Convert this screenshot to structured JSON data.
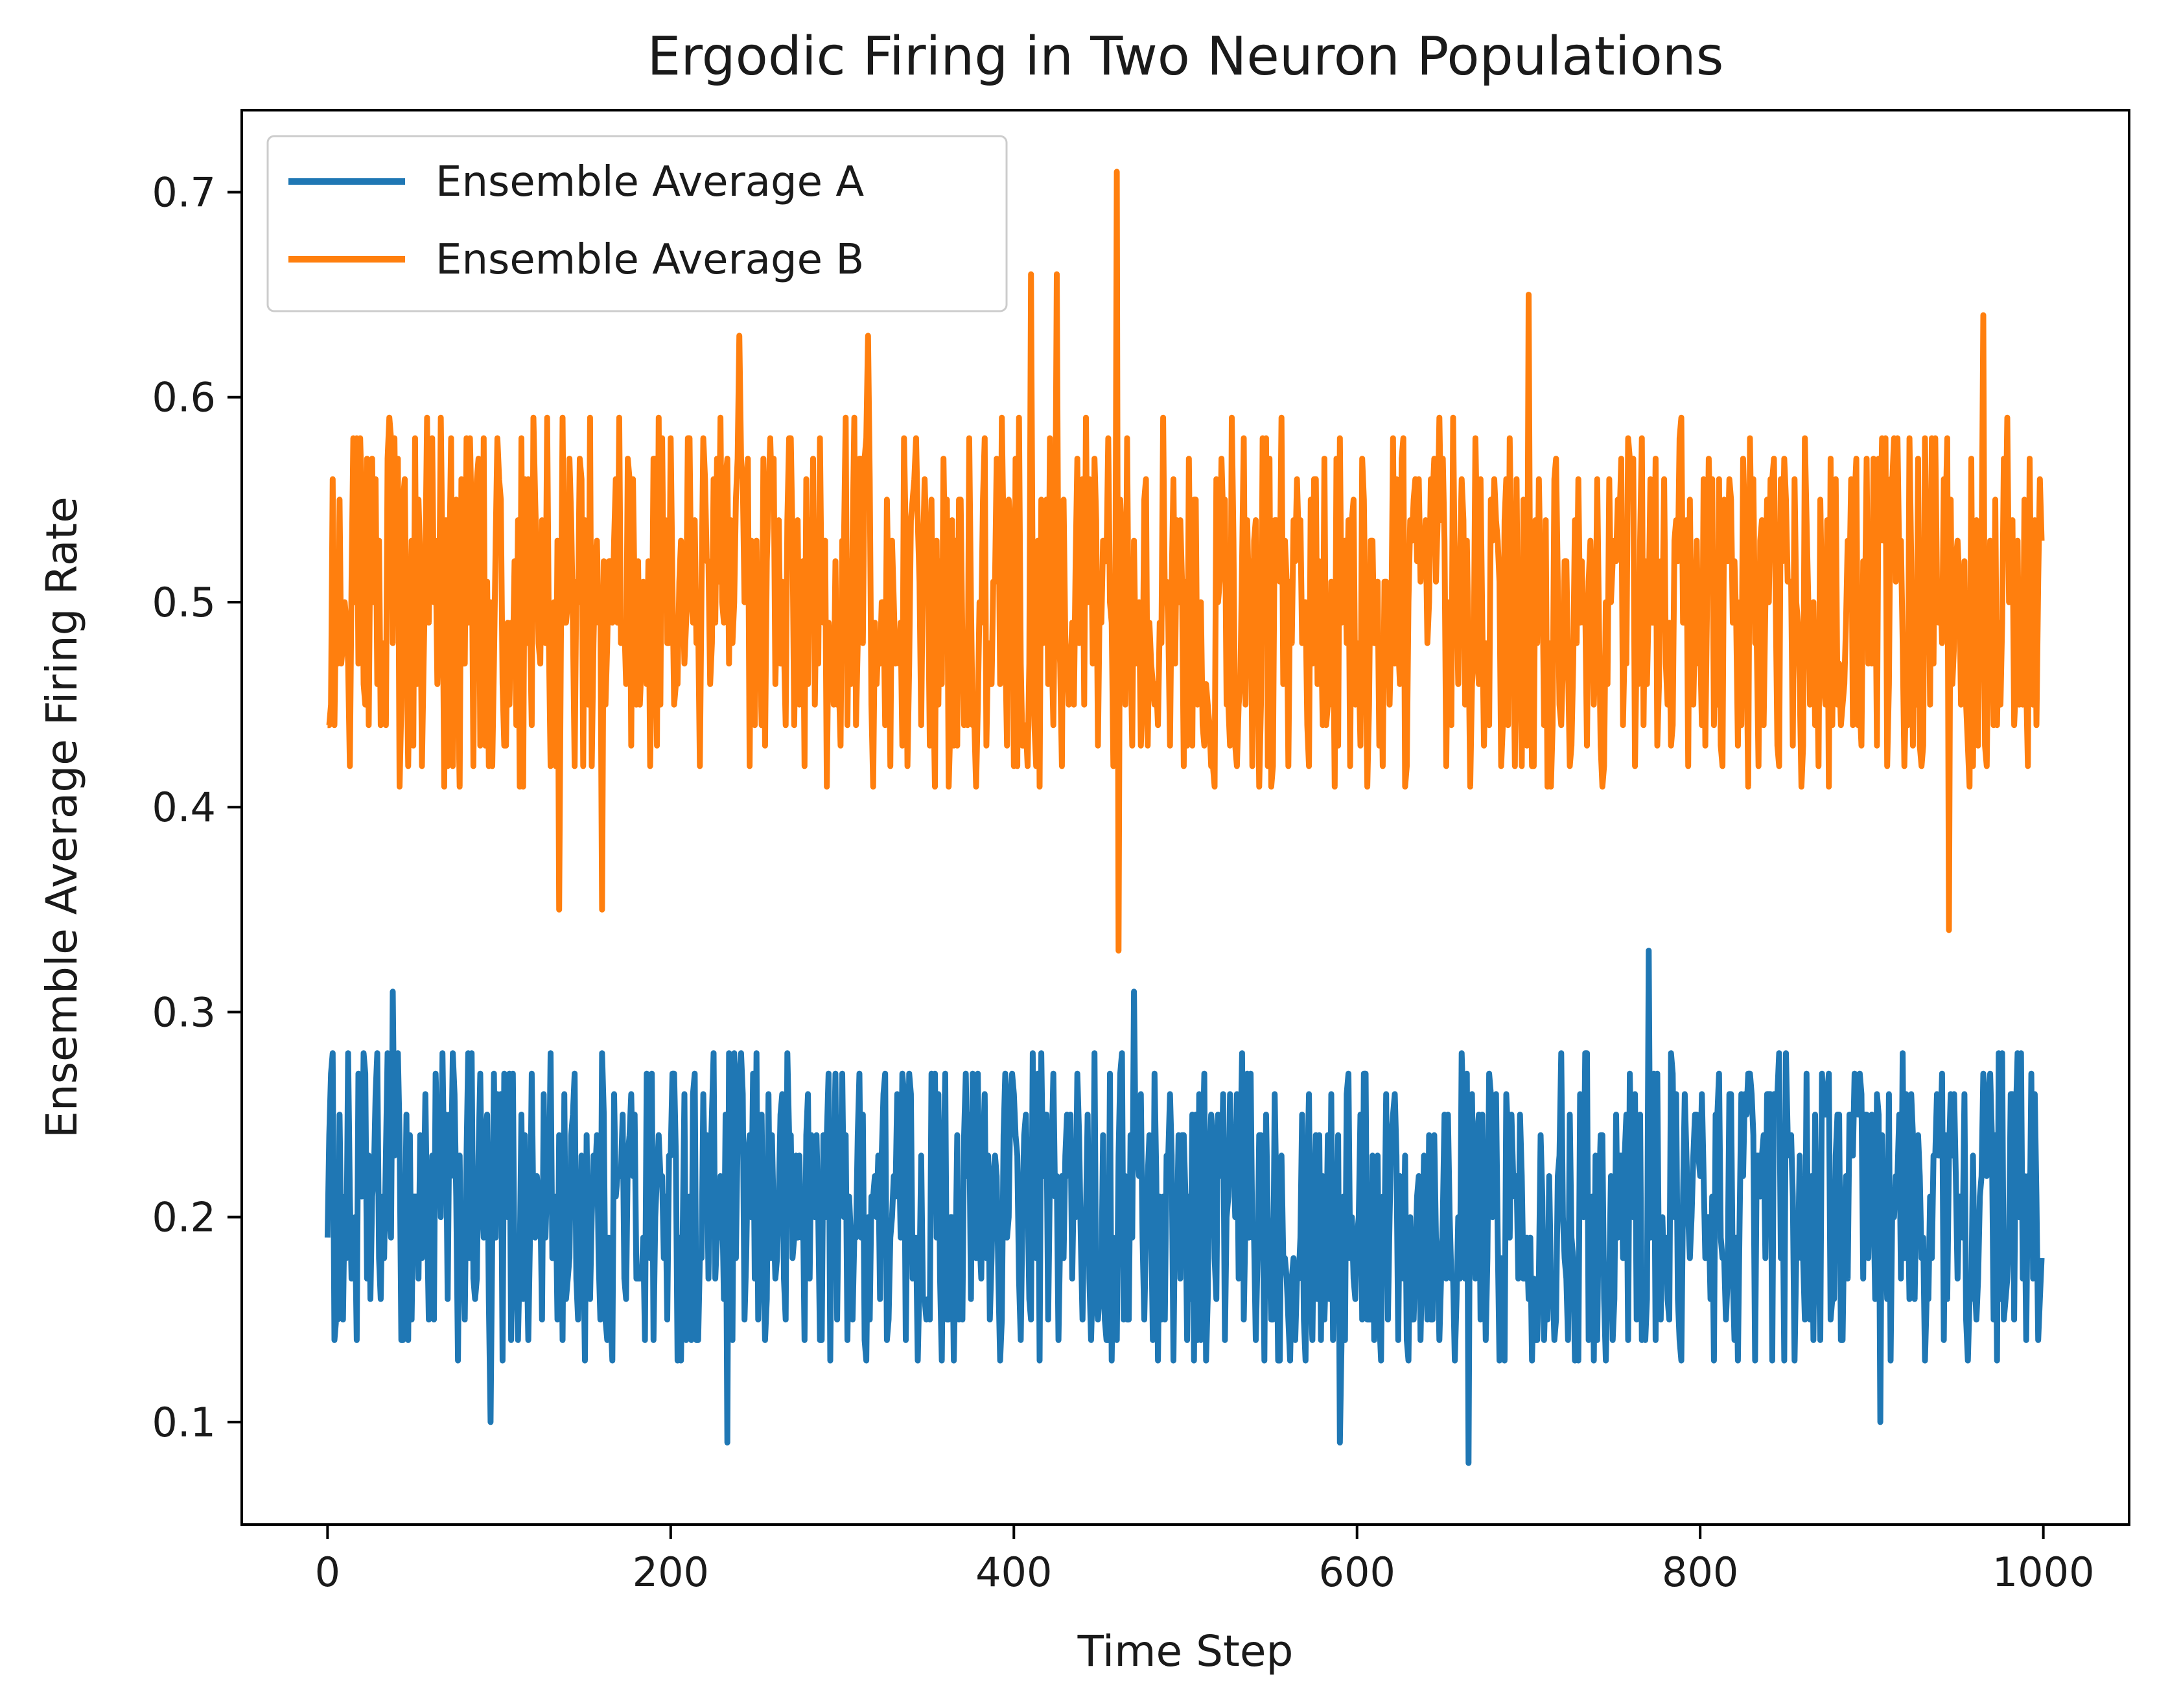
{
  "chart_data": {
    "type": "line",
    "title": "Ergodic Firing in Two Neuron Populations",
    "xlabel": "Time Step",
    "ylabel": "Ensemble Average Firing Rate",
    "xlim": [
      -50,
      1050
    ],
    "ylim": [
      0.05,
      0.74
    ],
    "x_ticks": [
      0,
      200,
      400,
      600,
      800,
      1000
    ],
    "x_tick_labels": [
      "0",
      "200",
      "400",
      "600",
      "800",
      "1000"
    ],
    "y_ticks": [
      0.1,
      0.2,
      0.3,
      0.4,
      0.5,
      0.6,
      0.7
    ],
    "y_tick_labels": [
      "0.1",
      "0.2",
      "0.3",
      "0.4",
      "0.5",
      "0.6",
      "0.7"
    ],
    "grid": false,
    "legend_position": "top-left",
    "x": {
      "start": 0,
      "end": 999,
      "step": 1
    },
    "series": [
      {
        "name": "Ensemble Average A",
        "color": "#1f77b4",
        "mean": 0.2,
        "typical_range": [
          0.13,
          0.28
        ],
        "min": {
          "x": 665,
          "y": 0.08
        },
        "max": {
          "x": 770,
          "y": 0.33
        },
        "notable_points": [
          {
            "x": 0,
            "y": 0.19
          },
          {
            "x": 38,
            "y": 0.31
          },
          {
            "x": 95,
            "y": 0.1
          },
          {
            "x": 233,
            "y": 0.09
          },
          {
            "x": 470,
            "y": 0.31
          },
          {
            "x": 590,
            "y": 0.09
          },
          {
            "x": 665,
            "y": 0.08
          },
          {
            "x": 770,
            "y": 0.33
          },
          {
            "x": 905,
            "y": 0.1
          },
          {
            "x": 999,
            "y": 0.18
          }
        ]
      },
      {
        "name": "Ensemble Average B",
        "color": "#ff7f0e",
        "mean": 0.5,
        "typical_range": [
          0.41,
          0.59
        ],
        "min": {
          "x": 460,
          "y": 0.33
        },
        "max": {
          "x": 460,
          "y": 0.71
        },
        "notable_points": [
          {
            "x": 0,
            "y": 0.44
          },
          {
            "x": 135,
            "y": 0.35
          },
          {
            "x": 160,
            "y": 0.35
          },
          {
            "x": 240,
            "y": 0.63
          },
          {
            "x": 315,
            "y": 0.63
          },
          {
            "x": 410,
            "y": 0.66
          },
          {
            "x": 425,
            "y": 0.66
          },
          {
            "x": 460,
            "y": 0.71
          },
          {
            "x": 460,
            "y": 0.33
          },
          {
            "x": 700,
            "y": 0.65
          },
          {
            "x": 945,
            "y": 0.34
          },
          {
            "x": 965,
            "y": 0.64
          },
          {
            "x": 999,
            "y": 0.53
          }
        ]
      }
    ]
  }
}
